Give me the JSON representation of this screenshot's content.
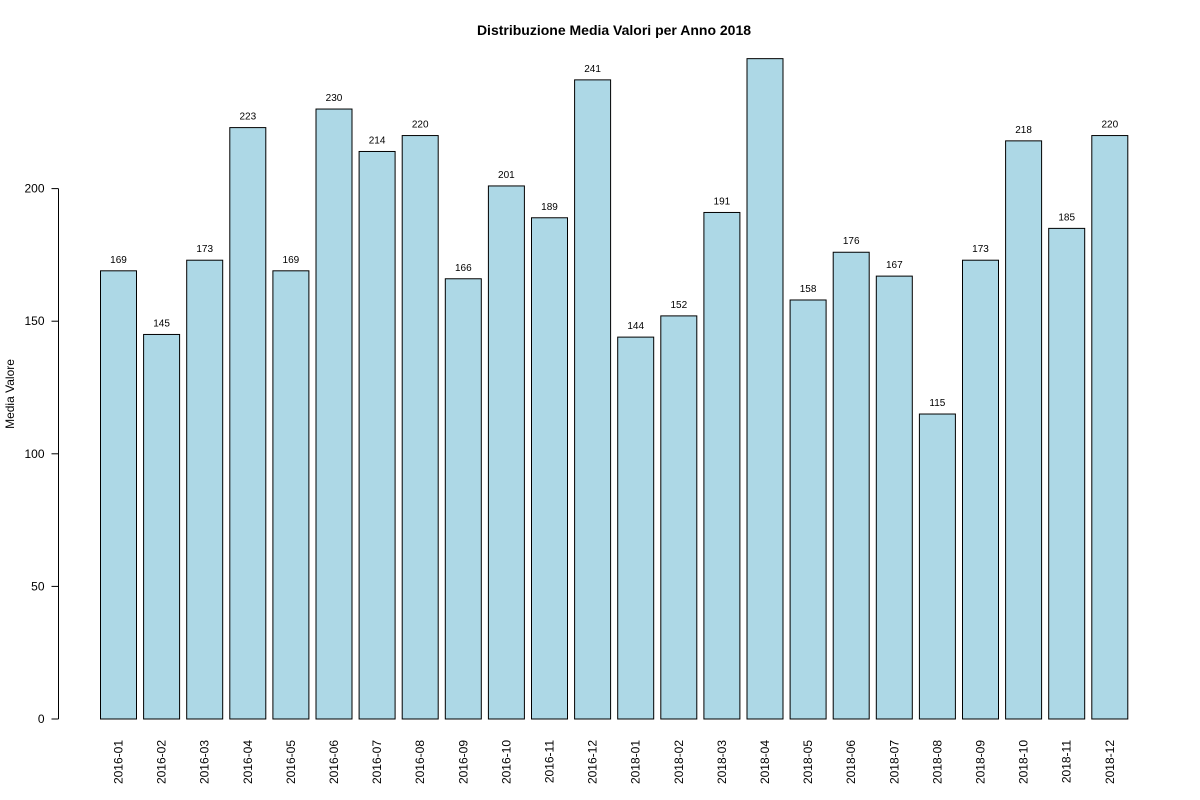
{
  "chart_data": {
    "type": "bar",
    "title": "Distribuzione Media Valori per Anno 2018",
    "xlabel": "",
    "ylabel": "Media Valore",
    "ylim": [
      0,
      250
    ],
    "yticks": [
      0,
      50,
      100,
      150,
      200
    ],
    "bar_color": "#add8e6",
    "grid": false,
    "categories": [
      "2016-01",
      "2016-02",
      "2016-03",
      "2016-04",
      "2016-05",
      "2016-06",
      "2016-07",
      "2016-08",
      "2016-09",
      "2016-10",
      "2016-11",
      "2016-12",
      "2018-01",
      "2018-02",
      "2018-03",
      "2018-04",
      "2018-05",
      "2018-06",
      "2018-07",
      "2018-08",
      "2018-09",
      "2018-10",
      "2018-11",
      "2018-12"
    ],
    "values": [
      169,
      145,
      173,
      223,
      169,
      230,
      214,
      220,
      166,
      201,
      189,
      241,
      144,
      152,
      191,
      249,
      158,
      176,
      167,
      115,
      173,
      218,
      185,
      220
    ],
    "data_labels": [
      "169",
      "145",
      "173",
      "223",
      "169",
      "230",
      "214",
      "220",
      "166",
      "201",
      "189",
      "241",
      "144",
      "152",
      "191",
      "",
      "158",
      "176",
      "167",
      "115",
      "173",
      "218",
      "185",
      "220"
    ]
  }
}
